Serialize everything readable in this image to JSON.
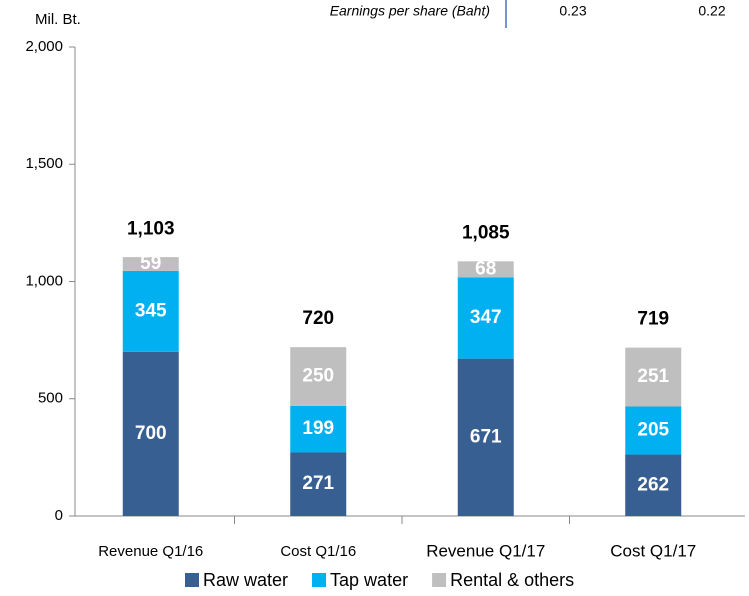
{
  "header": {
    "label": "Earnings per share (Baht)",
    "values": [
      "0.23",
      "0.22"
    ]
  },
  "chart_data": {
    "type": "stacked_bar",
    "y_unit_label": "Mil. Bt.",
    "categories": [
      "Revenue Q1/16",
      "Cost Q1/16",
      "Revenue Q1/17",
      "Cost Q1/17"
    ],
    "series": [
      {
        "name": "Raw water",
        "color": "#375f91",
        "values": [
          700,
          271,
          671,
          262
        ]
      },
      {
        "name": "Tap water",
        "color": "#00b0f0",
        "values": [
          345,
          199,
          347,
          205
        ]
      },
      {
        "name": "Rental & others",
        "color": "#bfbfbf",
        "values": [
          59,
          250,
          68,
          251
        ]
      }
    ],
    "totals": [
      1103,
      720,
      1085,
      719
    ],
    "total_labels": [
      "1,103",
      "720",
      "1,085",
      "719"
    ],
    "ylim": [
      0,
      2000
    ],
    "yticks": [
      0,
      500,
      {
        "value": 1000,
        "label": "1,000"
      },
      {
        "value": 1500,
        "label": "1,500"
      },
      {
        "value": 2000,
        "label": "2,000"
      }
    ],
    "legend": "bottom"
  }
}
